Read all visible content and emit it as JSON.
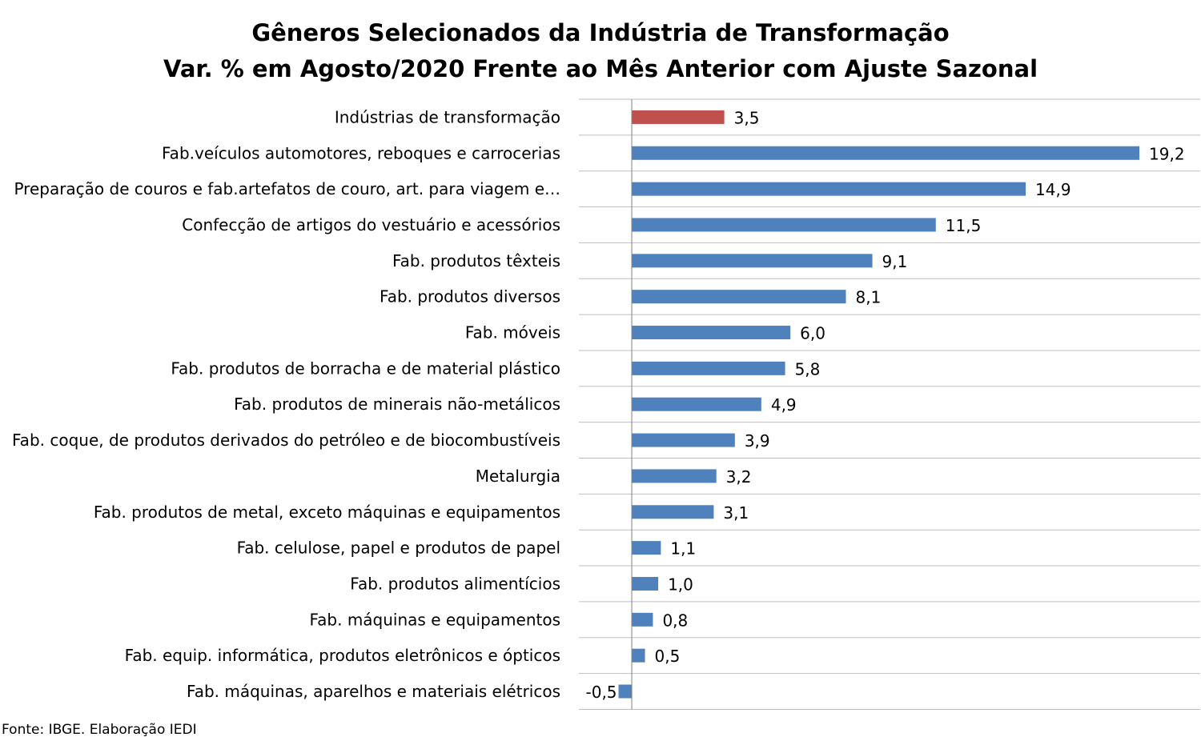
{
  "chart_data": {
    "type": "bar",
    "orientation": "horizontal",
    "title": "Gêneros Selecionados da Indústria de Transformação",
    "subtitle": "Var. % em Agosto/2020 Frente ao Mês Anterior com Ajuste Sazonal",
    "source": "Fonte: IBGE. Elaboração IEDI",
    "categories": [
      "Indústrias de transformação",
      "Fab.veículos automotores, reboques e carrocerias",
      "Preparação de couros e fab.artefatos de couro, art. para viagem e…",
      "Confecção de artigos do vestuário e acessórios",
      "Fab. produtos têxteis",
      "Fab. produtos diversos",
      "Fab. móveis",
      "Fab. produtos de borracha e de material plástico",
      "Fab. produtos de minerais não-metálicos",
      "Fab. coque, de produtos derivados do petróleo e de biocombustíveis",
      "Metalurgia",
      "Fab. produtos de metal, exceto máquinas e equipamentos",
      "Fab. celulose, papel e produtos de papel",
      "Fab. produtos alimentícios",
      "Fab. máquinas e equipamentos",
      "Fab. equip. informática, produtos eletrônicos e ópticos",
      "Fab. máquinas, aparelhos e materiais elétricos"
    ],
    "values": [
      3.5,
      19.2,
      14.9,
      11.5,
      9.1,
      8.1,
      6.0,
      5.8,
      4.9,
      3.9,
      3.2,
      3.1,
      1.1,
      1.0,
      0.8,
      0.5,
      -0.5
    ],
    "value_labels": [
      "3,5",
      "19,2",
      "14,9",
      "11,5",
      "9,1",
      "8,1",
      "6,0",
      "5,8",
      "4,9",
      "3,9",
      "3,2",
      "3,1",
      "1,1",
      "1,0",
      "0,8",
      "0,5",
      "-0,5"
    ],
    "colors": {
      "highlight": "#C0504D",
      "default": "#4F81BD",
      "gridline": "#BFBFBF",
      "axis": "#808080"
    },
    "highlight_index": 0,
    "xlim": [
      -2,
      21.5
    ],
    "grid": "horizontal separators",
    "legend": "none"
  }
}
